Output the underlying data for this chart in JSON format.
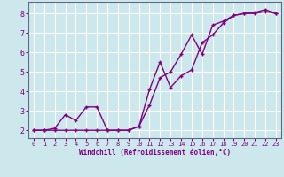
{
  "line1_x": [
    0,
    1,
    2,
    3,
    4,
    5,
    6,
    7,
    8,
    9,
    10,
    11,
    12,
    13,
    14,
    15,
    16,
    17,
    18,
    19,
    20,
    21,
    22,
    23
  ],
  "line1_y": [
    2.0,
    2.0,
    2.1,
    2.8,
    2.5,
    3.2,
    3.2,
    2.0,
    2.0,
    2.0,
    2.2,
    3.3,
    4.7,
    5.0,
    5.9,
    6.9,
    5.9,
    7.4,
    7.6,
    7.9,
    8.0,
    8.05,
    8.2,
    8.0
  ],
  "line2_x": [
    0,
    1,
    2,
    3,
    4,
    5,
    6,
    7,
    8,
    9,
    10,
    11,
    12,
    13,
    14,
    15,
    16,
    17,
    18,
    19,
    20,
    21,
    22,
    23
  ],
  "line2_y": [
    2.0,
    2.0,
    2.0,
    2.0,
    2.0,
    2.0,
    2.0,
    2.0,
    2.0,
    2.0,
    2.2,
    4.1,
    5.5,
    4.2,
    4.8,
    5.1,
    6.5,
    6.9,
    7.5,
    7.9,
    8.0,
    8.0,
    8.1,
    8.0
  ],
  "line_color": "#800080",
  "marker": "+",
  "background_color": "#cce8ed",
  "grid_color": "#ffffff",
  "axis_color": "#666688",
  "xlabel": "Windchill (Refroidissement éolien,°C)",
  "xlim": [
    -0.5,
    23.5
  ],
  "ylim": [
    1.6,
    8.6
  ],
  "yticks": [
    2,
    3,
    4,
    5,
    6,
    7,
    8
  ],
  "xticks": [
    0,
    1,
    2,
    3,
    4,
    5,
    6,
    7,
    8,
    9,
    10,
    11,
    12,
    13,
    14,
    15,
    16,
    17,
    18,
    19,
    20,
    21,
    22,
    23
  ],
  "font_color": "#800080",
  "line_width": 1.0,
  "marker_size": 3.5
}
